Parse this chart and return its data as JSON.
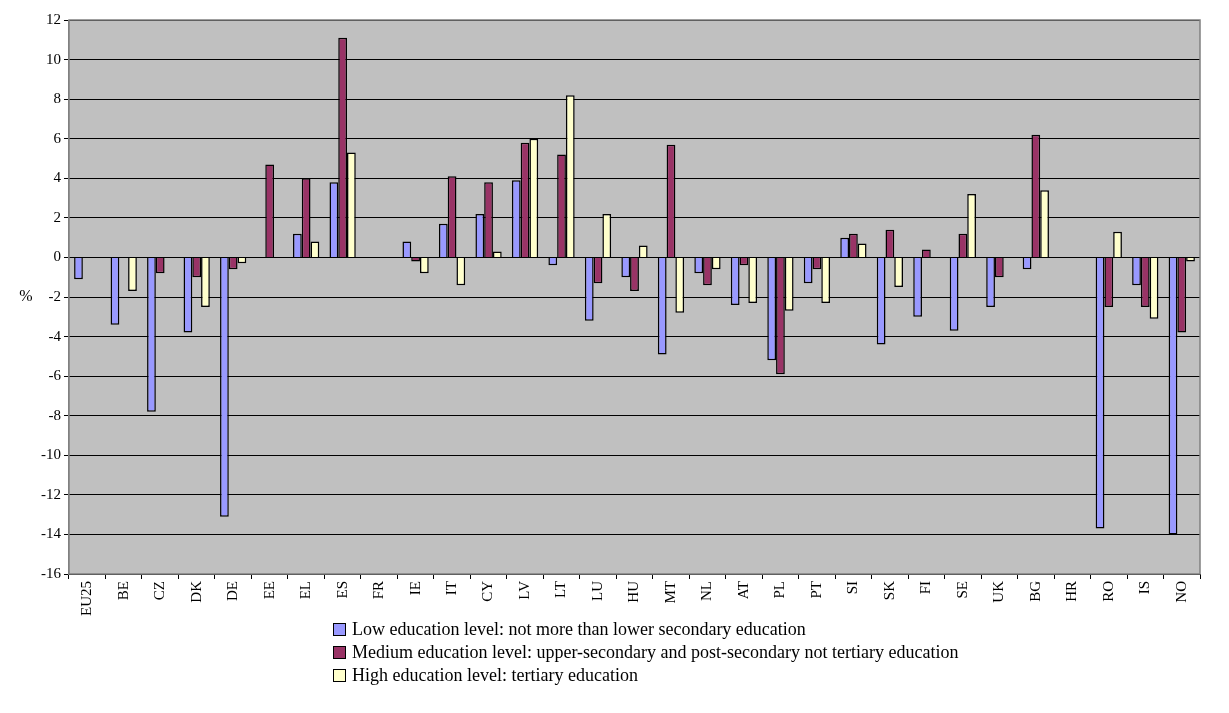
{
  "chart_data": {
    "type": "bar",
    "ylabel": "%",
    "categories": [
      "EU25",
      "BE",
      "CZ",
      "DK",
      "DE",
      "EE",
      "EL",
      "ES",
      "FR",
      "IE",
      "IT",
      "CY",
      "LV",
      "LT",
      "LU",
      "HU",
      "MT",
      "NL",
      "AT",
      "PL",
      "PT",
      "SI",
      "SK",
      "FI",
      "SE",
      "UK",
      "BG",
      "HR",
      "RO",
      "IS",
      "NO"
    ],
    "series": [
      {
        "name": "Low education level: not more than lower secondary education",
        "color": "#9999ff",
        "values": [
          -1.1,
          -3.4,
          -7.8,
          -3.8,
          -13.1,
          null,
          1.2,
          3.8,
          null,
          0.8,
          1.7,
          2.2,
          3.9,
          -0.4,
          -3.2,
          -1.0,
          -4.9,
          -0.8,
          -2.4,
          -5.2,
          -1.3,
          1.0,
          -4.4,
          -3.0,
          -3.7,
          -2.5,
          -0.6,
          null,
          -13.7,
          -1.4,
          -14.0
        ]
      },
      {
        "name": "Medium education level: upper-secondary and post-secondary not tertiary education",
        "color": "#993366",
        "values": [
          null,
          null,
          -0.8,
          -1.0,
          -0.6,
          4.7,
          4.0,
          11.1,
          null,
          -0.2,
          4.1,
          3.8,
          5.8,
          5.2,
          -1.3,
          -1.7,
          5.7,
          -1.4,
          -0.4,
          -5.9,
          -0.6,
          1.2,
          1.4,
          0.4,
          1.2,
          -1.0,
          6.2,
          null,
          -2.5,
          -2.5,
          -3.8
        ]
      },
      {
        "name": "High education level: tertiary education",
        "color": "#ffffcc",
        "values": [
          null,
          -1.7,
          null,
          -2.5,
          -0.3,
          null,
          0.8,
          5.3,
          null,
          -0.8,
          -1.4,
          0.3,
          6.0,
          8.2,
          2.2,
          0.6,
          -2.8,
          -0.6,
          -2.3,
          -2.7,
          -2.3,
          0.7,
          -1.5,
          null,
          3.2,
          null,
          3.4,
          null,
          1.3,
          -3.1,
          -0.2
        ]
      }
    ],
    "ylim": [
      -16,
      12
    ],
    "yticks": [
      -16,
      -14,
      -12,
      -10,
      -8,
      -6,
      -4,
      -2,
      0,
      2,
      4,
      6,
      8,
      10,
      12
    ],
    "grid": "y",
    "legend": "bottom"
  }
}
